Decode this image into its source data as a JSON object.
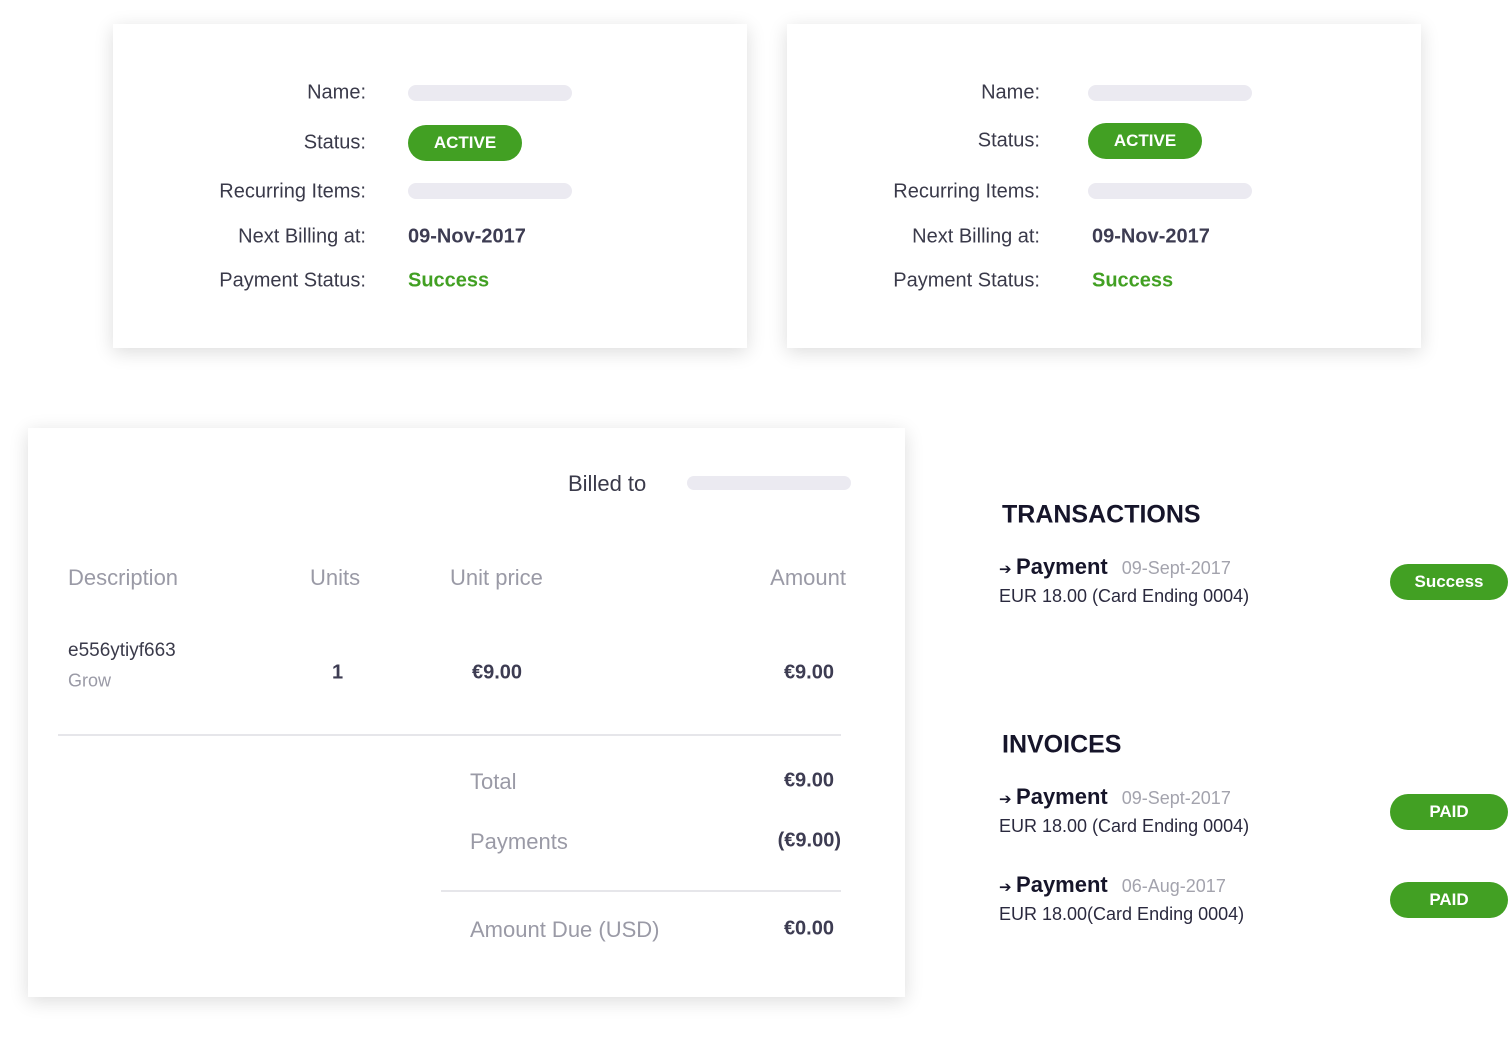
{
  "subscriptions": [
    {
      "name_label": "Name:",
      "status_label": "Status:",
      "status": "ACTIVE",
      "recurring_label": "Recurring Items:",
      "next_billing_label": "Next Billing at:",
      "next_billing": "09-Nov-2017",
      "payment_status_label": "Payment Status:",
      "payment_status": "Success"
    },
    {
      "name_label": "Name:",
      "status_label": "Status:",
      "status": "ACTIVE",
      "recurring_label": "Recurring Items:",
      "next_billing_label": "Next Billing at:",
      "next_billing": "09-Nov-2017",
      "payment_status_label": "Payment Status:",
      "payment_status": "Success"
    }
  ],
  "invoice": {
    "billed_to": "Billed to",
    "headers": {
      "description": "Description",
      "units": "Units",
      "unit_price": "Unit price",
      "amount": "Amount"
    },
    "row": {
      "description": "e556ytiyf663",
      "plan": "Grow",
      "units": "1",
      "unit_price": "€9.00",
      "amount": "€9.00"
    },
    "total_label": "Total",
    "total": "€9.00",
    "payments_label": "Payments",
    "payments": "(€9.00)",
    "due_label": "Amount Due (USD)",
    "due": "€0.00"
  },
  "transactions": {
    "title": "TRANSACTIONS",
    "items": [
      {
        "arrow": "➔",
        "type": "Payment",
        "date": "09-Sept-2017",
        "detail": "EUR 18.00 (Card Ending 0004)",
        "status": "Success"
      }
    ]
  },
  "invoices": {
    "title": "INVOICES",
    "items": [
      {
        "arrow": "➔",
        "type": "Payment",
        "date": "09-Sept-2017",
        "detail": "EUR 18.00 (Card Ending 0004)",
        "status": "PAID"
      },
      {
        "arrow": "➔",
        "type": "Payment",
        "date": "06-Aug-2017",
        "detail": "EUR 18.00(Card Ending 0004)",
        "status": "PAID"
      }
    ]
  },
  "colors": {
    "success": "#42a023",
    "placeholder": "#ebeaf1",
    "text": "#2e2d43"
  }
}
